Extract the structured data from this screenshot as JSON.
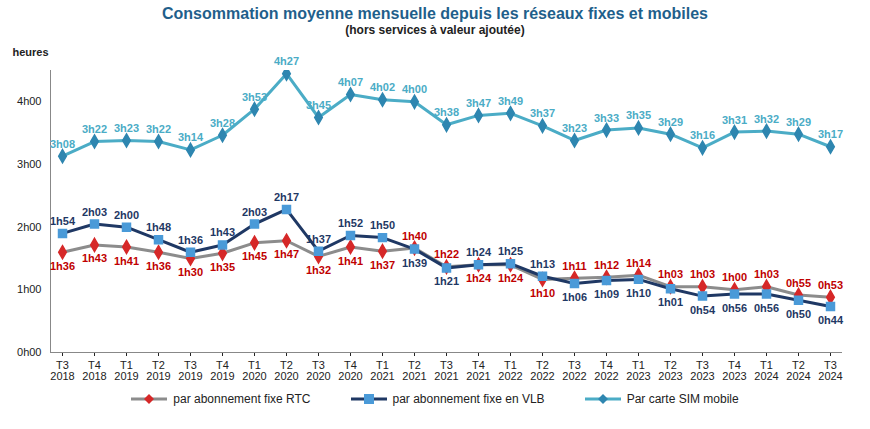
{
  "chart_data": {
    "type": "line",
    "title": "Consommation moyenne mensuelle depuis les réseaux fixes et mobiles",
    "subtitle": "(hors services à valeur ajoutée)",
    "y_label": "heures",
    "categories": [
      "T3 2018",
      "T4 2018",
      "T1 2019",
      "T2 2019",
      "T3 2019",
      "T4 2019",
      "T1 2020",
      "T2 2020",
      "T3 2020",
      "T4 2020",
      "T1 2021",
      "T2 2021",
      "T3 2021",
      "T4 2021",
      "T1 2022",
      "T2 2022",
      "T3 2022",
      "T4 2022",
      "T1 2023",
      "T2 2023",
      "T3 2023",
      "T4 2023",
      "T1 2024",
      "T2 2024",
      "T3 2024"
    ],
    "series": [
      {
        "name": "par abonnement fixe RTC",
        "color": "#8c8c8c",
        "marker": "diamond",
        "values": [
          1.6,
          1.7167,
          1.6833,
          1.6,
          1.5,
          1.5833,
          1.75,
          1.7833,
          1.5333,
          1.6833,
          1.6167,
          1.6667,
          1.3667,
          1.4,
          1.4,
          1.1667,
          1.1833,
          1.2,
          1.2333,
          1.05,
          1.05,
          1.0,
          1.05,
          0.9167,
          0.8833
        ],
        "value_labels": [
          "1h36",
          "1h43",
          "1h41",
          "1h36",
          "1h30",
          "1h35",
          "1h45",
          "1h47",
          "1h32",
          "1h41",
          "1h37",
          "1h40",
          "1h22",
          "1h24",
          "1h24",
          "1h10",
          "1h11",
          "1h12",
          "1h14",
          "1h03",
          "1h03",
          "1h00",
          "1h03",
          "0h55",
          "0h53"
        ]
      },
      {
        "name": "par abonnement fixe en VLB",
        "color": "#1f3864",
        "marker": "square",
        "values": [
          1.9,
          2.05,
          2.0,
          1.8,
          1.6,
          1.7167,
          2.05,
          2.2833,
          1.6167,
          1.8667,
          1.8333,
          1.65,
          1.35,
          1.4,
          1.4167,
          1.2167,
          1.1,
          1.15,
          1.1667,
          1.0167,
          0.9,
          0.9333,
          0.9333,
          0.8333,
          0.7333
        ],
        "value_labels": [
          "1h54",
          "2h03",
          "2h00",
          "1h48",
          "1h36",
          "1h43",
          "2h03",
          "2h17",
          "1h37",
          "1h52",
          "1h50",
          "1h39",
          "1h21",
          "1h24",
          "1h25",
          "1h13",
          "1h06",
          "1h09",
          "1h10",
          "1h01",
          "0h54",
          "0h56",
          "0h56",
          "0h50",
          "0h44"
        ]
      },
      {
        "name": "Par carte SIM mobile",
        "color": "#4bacc6",
        "marker": "diamond",
        "values": [
          3.1333,
          3.3667,
          3.3833,
          3.3667,
          3.2333,
          3.4667,
          3.8833,
          4.45,
          3.75,
          4.1167,
          4.0333,
          4.0,
          3.6333,
          3.7833,
          3.8167,
          3.6167,
          3.3833,
          3.55,
          3.5833,
          3.4833,
          3.2667,
          3.5167,
          3.5333,
          3.4833,
          3.2833
        ],
        "value_labels": [
          "3h08",
          "3h22",
          "3h23",
          "3h22",
          "3h14",
          "3h28",
          "3h53",
          "4h27",
          "3h45",
          "4h07",
          "4h02",
          "4h00",
          "3h38",
          "3h47",
          "3h49",
          "3h37",
          "3h23",
          "3h33",
          "3h35",
          "3h29",
          "3h16",
          "3h31",
          "3h32",
          "3h29",
          "3h17"
        ]
      }
    ],
    "ylim": [
      0,
      4.5
    ],
    "yticks": [
      {
        "value": 0,
        "label": "0h00"
      },
      {
        "value": 1,
        "label": "1h00"
      },
      {
        "value": 2,
        "label": "2h00"
      },
      {
        "value": 3,
        "label": "3h00"
      },
      {
        "value": 4,
        "label": "4h00"
      }
    ],
    "grid": false,
    "data_labels": true,
    "legend": "bottom"
  }
}
